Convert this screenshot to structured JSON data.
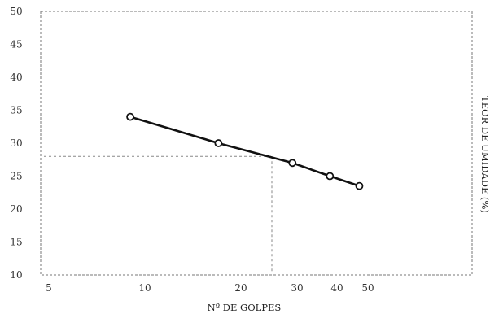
{
  "chart_data": {
    "type": "line",
    "title": "",
    "xlabel": "Nº DE GOLPES",
    "ylabel": "TEOR DE UMIDADE (%)",
    "x_scale": "log",
    "xlim": [
      5,
      50
    ],
    "ylim": [
      10,
      50
    ],
    "x_ticks": [
      5,
      10,
      20,
      30,
      40,
      50
    ],
    "x_tick_labels": [
      "5",
      "10",
      "20",
      "30",
      "40",
      "50"
    ],
    "y_ticks": [
      10,
      15,
      20,
      25,
      30,
      35,
      40,
      45,
      50
    ],
    "y_tick_labels": [
      "10",
      "15",
      "20",
      "25",
      "30",
      "35",
      "40",
      "45",
      "50"
    ],
    "grid": false,
    "legend": "none",
    "series": [
      {
        "x": [
          9,
          17,
          29,
          38,
          47
        ],
        "y": [
          34,
          30,
          27,
          25,
          23.5
        ]
      }
    ],
    "reference": {
      "x": 25,
      "y": 28
    }
  }
}
